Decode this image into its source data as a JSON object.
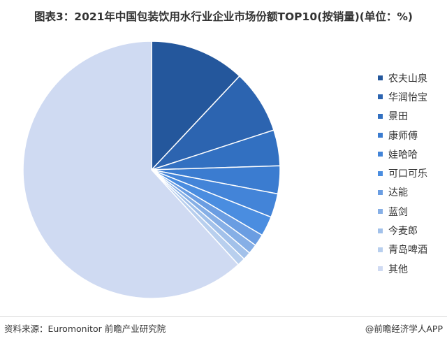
{
  "chart_data": {
    "type": "pie",
    "title": "图表3：2021年中国包装饮用水行业企业市场份额TOP10(按销量)(单位：%)",
    "unit": "%",
    "legend_position": "right",
    "slices": [
      {
        "label": "农夫山泉",
        "value": 12.0,
        "color": "#24579c"
      },
      {
        "label": "华润怡宝",
        "value": 8.0,
        "color": "#2c64b0"
      },
      {
        "label": "景田",
        "value": 4.5,
        "color": "#3270c1"
      },
      {
        "label": "康师傅",
        "value": 3.5,
        "color": "#3b7cd0"
      },
      {
        "label": "娃哈哈",
        "value": 3.0,
        "color": "#4384d8"
      },
      {
        "label": "可口可乐",
        "value": 2.5,
        "color": "#4a8de0"
      },
      {
        "label": "达能",
        "value": 1.5,
        "color": "#6a9de2"
      },
      {
        "label": "蓝剑",
        "value": 1.2,
        "color": "#86afe6"
      },
      {
        "label": "今麦郎",
        "value": 1.0,
        "color": "#a2c1ea"
      },
      {
        "label": "青岛啤酒",
        "value": 1.0,
        "color": "#b8cfee"
      },
      {
        "label": "其他",
        "value": 61.8,
        "color": "#cfdaf2"
      }
    ]
  },
  "footer": {
    "source": "资料来源：Euromonitor 前瞻产业研究院",
    "credit": "@前瞻经济学人APP"
  }
}
